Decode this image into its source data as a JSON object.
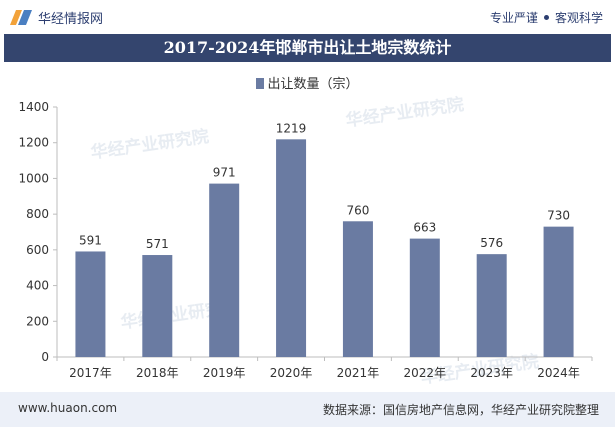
{
  "header": {
    "brand": "华经情报网",
    "slogan_left": "专业严谨",
    "slogan_right": "客观科学"
  },
  "title": "2017-2024年邯郸市出让土地宗数统计",
  "legend_label": "出让数量（宗）",
  "footer": {
    "site": "www.huaon.com",
    "source": "数据来源：国信房地产信息网，华经产业研究院整理"
  },
  "watermark": "华经产业研究院",
  "colors": {
    "bar": "#6a7ba2",
    "title_bg": "#34456e",
    "footer_bg": "#ecf0f8"
  },
  "chart_data": {
    "type": "bar",
    "title": "2017-2024年邯郸市出让土地宗数统计",
    "categories": [
      "2017年",
      "2018年",
      "2019年",
      "2020年",
      "2021年",
      "2022年",
      "2023年",
      "2024年"
    ],
    "series": [
      {
        "name": "出让数量（宗）",
        "values": [
          591,
          571,
          971,
          1219,
          760,
          663,
          576,
          730
        ]
      }
    ],
    "ylim": [
      0,
      1400
    ],
    "yticks": [
      0,
      200,
      400,
      600,
      800,
      1000,
      1200,
      1400
    ],
    "xlabel": "",
    "ylabel": "",
    "legend_position": "top-center",
    "grid": false
  }
}
